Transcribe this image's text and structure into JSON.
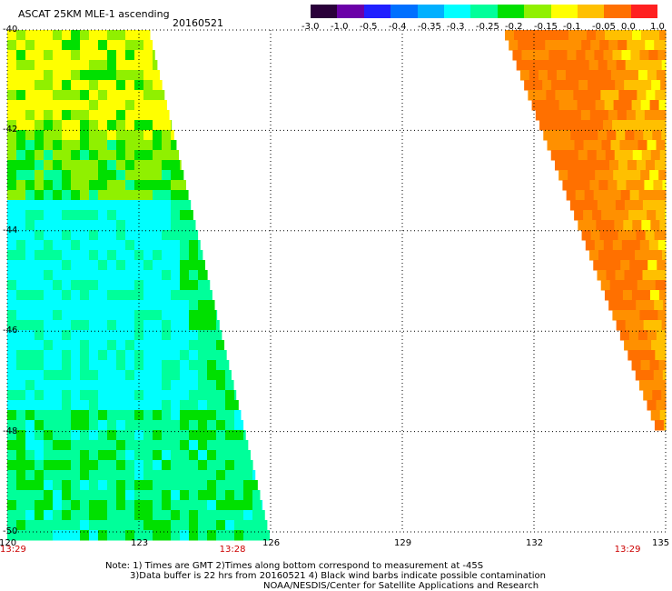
{
  "header": {
    "product_title": "ASCAT 25KM MLE-1 ascending",
    "date": "20160521"
  },
  "colorbar": {
    "labels": [
      "-3.0",
      "-1.0",
      "-0.5",
      "-0.4",
      "-0.35",
      "-0.3",
      "-0.25",
      "-0.2",
      "-0.15",
      "-0.1",
      "-0.05",
      "0.0",
      "1.0"
    ],
    "colors": [
      "#2a003a",
      "#6a00a8",
      "#2020ff",
      "#0070ff",
      "#00b0ff",
      "#00ffff",
      "#00ff9a",
      "#00e000",
      "#90f000",
      "#ffff00",
      "#ffc000",
      "#ff7000",
      "#ff2020"
    ]
  },
  "map": {
    "lon_min": 120,
    "lon_max": 135,
    "lat_min": -50,
    "lat_max": -40,
    "lon_ticks": [
      "120",
      "123",
      "126",
      "129",
      "132",
      "135"
    ],
    "lat_ticks": [
      "-40",
      "-42",
      "-44",
      "-46",
      "-48",
      "-50"
    ],
    "time_labels": [
      {
        "text": "13:29",
        "lon": 120
      },
      {
        "text": "13:28",
        "lon": 125
      },
      {
        "text": "13:29",
        "lon": 134
      }
    ],
    "swath_colors": {
      "west": [
        "#00ffff",
        "#00ff9a",
        "#00e000",
        "#90f000",
        "#ffff00"
      ],
      "east": [
        "#ff7000",
        "#ff9000",
        "#ffc000",
        "#ffff00"
      ]
    }
  },
  "notes": {
    "line1": "Note: 1) Times are GMT 2)Times along bottom correspond to measurement at -45S",
    "line2": "3)Data buffer is 22 hrs from 20160521 4) Black wind barbs indicate possible contamination",
    "line3": "NOAA/NESDIS/Center for Satellite Applications and Research"
  }
}
